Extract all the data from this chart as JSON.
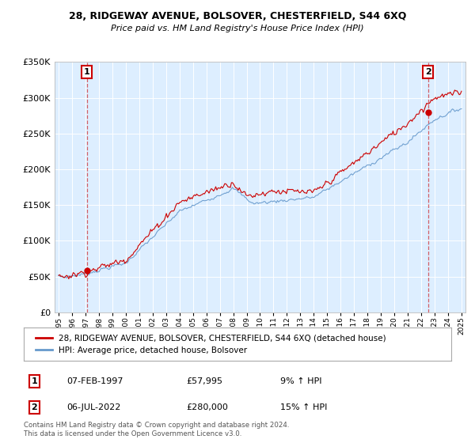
{
  "title": "28, RIDGEWAY AVENUE, BOLSOVER, CHESTERFIELD, S44 6XQ",
  "subtitle": "Price paid vs. HM Land Registry's House Price Index (HPI)",
  "legend_line1": "28, RIDGEWAY AVENUE, BOLSOVER, CHESTERFIELD, S44 6XQ (detached house)",
  "legend_line2": "HPI: Average price, detached house, Bolsover",
  "annotation1_label": "1",
  "annotation1_date": "07-FEB-1997",
  "annotation1_price": "£57,995",
  "annotation1_hpi": "9% ↑ HPI",
  "annotation2_label": "2",
  "annotation2_date": "06-JUL-2022",
  "annotation2_price": "£280,000",
  "annotation2_hpi": "15% ↑ HPI",
  "footer": "Contains HM Land Registry data © Crown copyright and database right 2024.\nThis data is licensed under the Open Government Licence v3.0.",
  "hpi_color": "#6699cc",
  "price_color": "#cc0000",
  "marker_color": "#cc0000",
  "bg_color": "#ddeeff",
  "annotation_box_color": "#cc0000",
  "xmin": 1994.7,
  "xmax": 2025.3,
  "ymin": 0,
  "ymax": 350000,
  "sale1_x": 1997.1,
  "sale1_y": 57995,
  "sale2_x": 2022.5,
  "sale2_y": 280000,
  "yticks": [
    0,
    50000,
    100000,
    150000,
    200000,
    250000,
    300000,
    350000
  ]
}
